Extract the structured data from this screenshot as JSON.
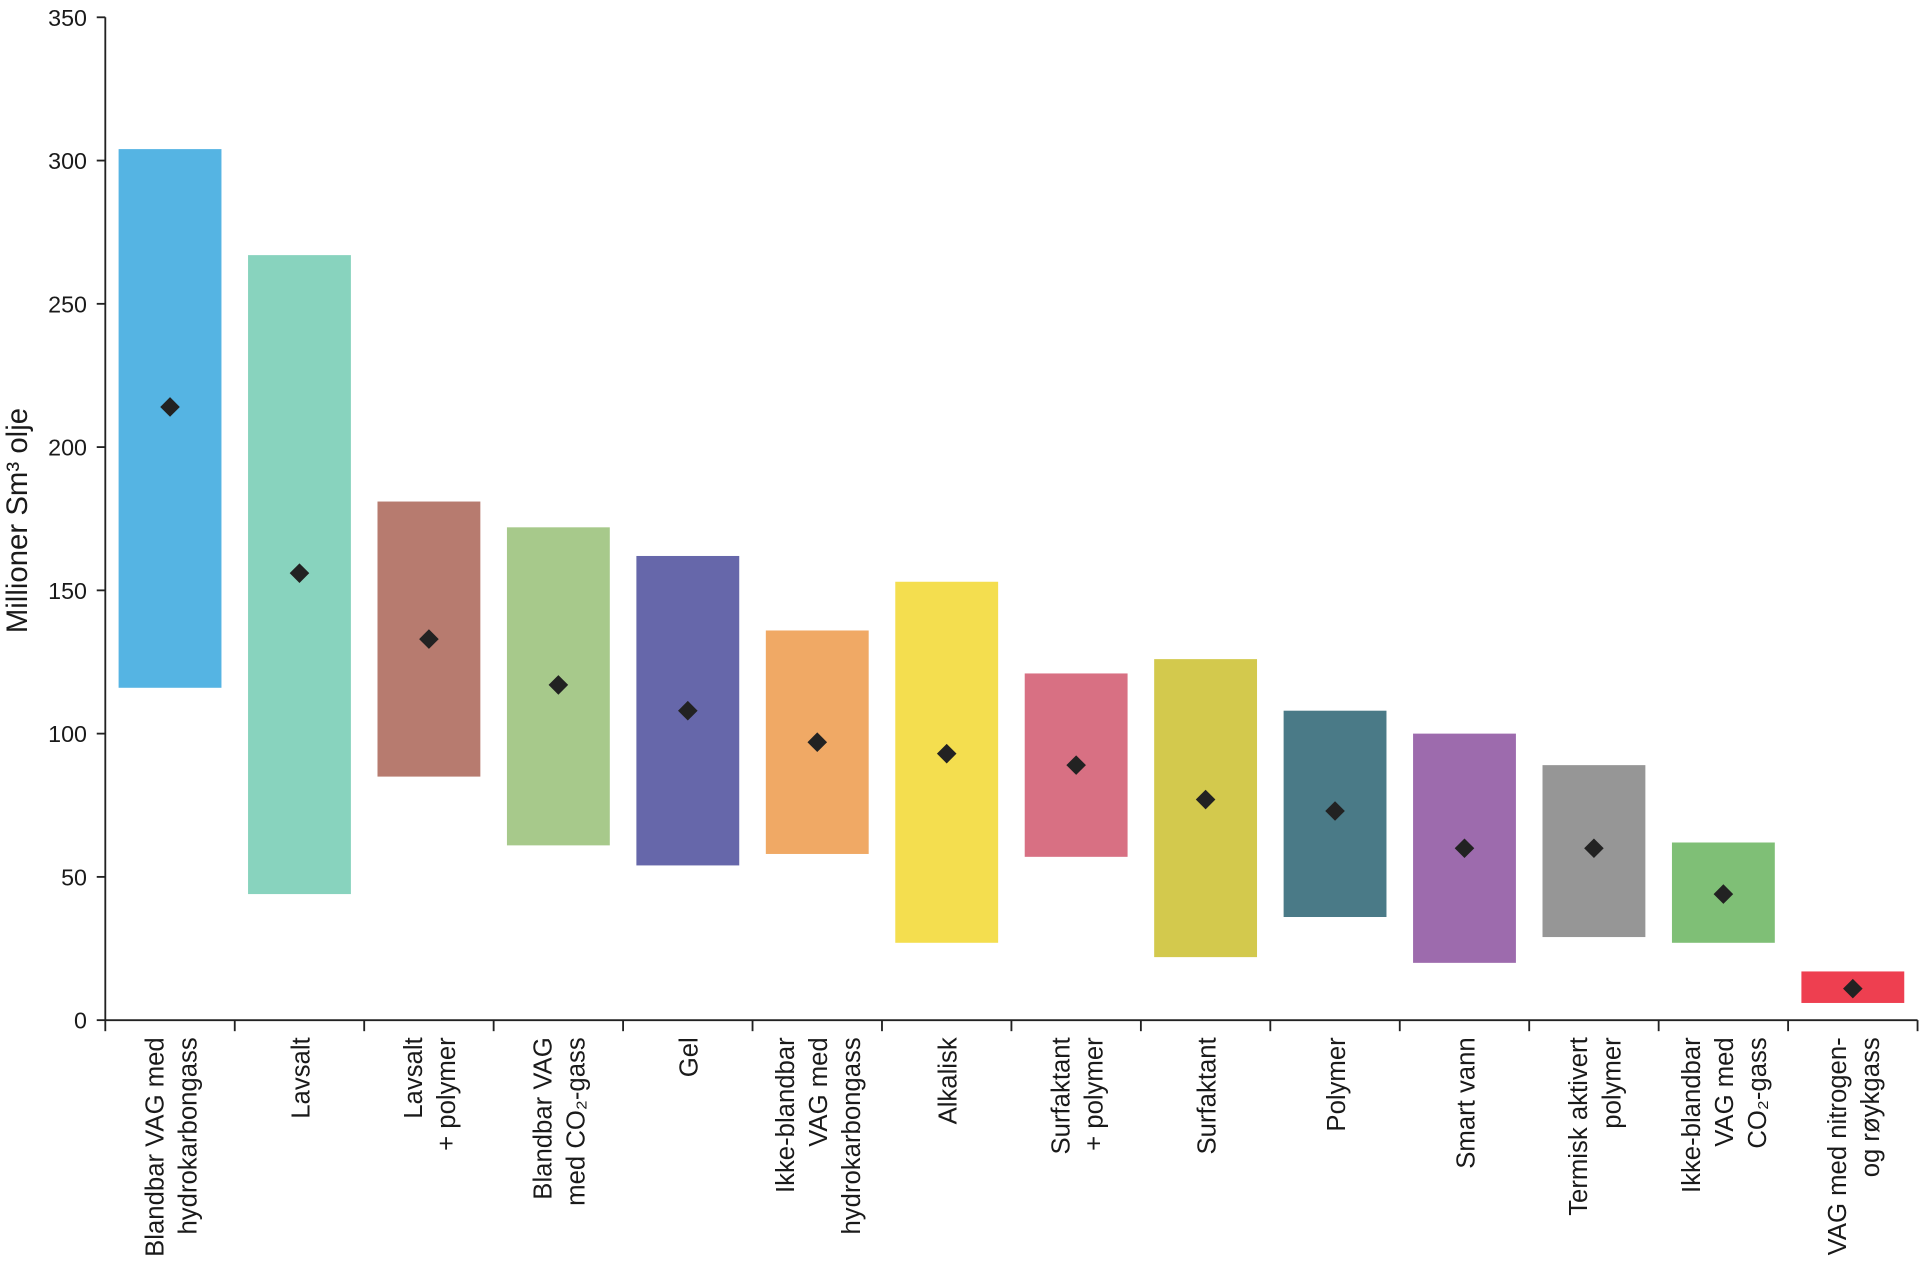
{
  "chart_data": {
    "type": "floating-bar-range",
    "title": "",
    "xlabel": "",
    "ylabel": "Millioner Sm³ olje",
    "ylim": [
      0,
      350
    ],
    "yticks": [
      0,
      50,
      100,
      150,
      200,
      250,
      300,
      350
    ],
    "grid": false,
    "legend": "none",
    "marker": "diamond",
    "categories": [
      {
        "label": [
          "Blandbar VAG med",
          "hydrokarbongass"
        ],
        "low": 116,
        "high": 304,
        "mid": 214,
        "color": "#55b4e3"
      },
      {
        "label": [
          "Lavsalt"
        ],
        "low": 44,
        "high": 267,
        "mid": 156,
        "color": "#88d3be"
      },
      {
        "label": [
          "Lavsalt",
          "+ polymer"
        ],
        "low": 85,
        "high": 181,
        "mid": 133,
        "color": "#b77b6f"
      },
      {
        "label": [
          "Blandbar VAG",
          "med CO₂-gass"
        ],
        "low": 61,
        "high": 172,
        "mid": 117,
        "color": "#a7c98b"
      },
      {
        "label": [
          "Gel"
        ],
        "low": 54,
        "high": 162,
        "mid": 108,
        "color": "#6667aa"
      },
      {
        "label": [
          "Ikke-blandbar",
          "VAG med",
          "hydrokarbongass"
        ],
        "low": 58,
        "high": 136,
        "mid": 97,
        "color": "#f0a965"
      },
      {
        "label": [
          "Alkalisk"
        ],
        "low": 27,
        "high": 153,
        "mid": 93,
        "color": "#f4de4f"
      },
      {
        "label": [
          "Surfaktant",
          "+ polymer"
        ],
        "low": 57,
        "high": 121,
        "mid": 89,
        "color": "#d87083"
      },
      {
        "label": [
          "Surfaktant"
        ],
        "low": 22,
        "high": 126,
        "mid": 77,
        "color": "#d3c94d"
      },
      {
        "label": [
          "Polymer"
        ],
        "low": 36,
        "high": 108,
        "mid": 73,
        "color": "#4a7a87"
      },
      {
        "label": [
          "Smart vann"
        ],
        "low": 20,
        "high": 100,
        "mid": 60,
        "color": "#9d6bad"
      },
      {
        "label": [
          "Termisk aktivert",
          "polymer"
        ],
        "low": 29,
        "high": 89,
        "mid": 60,
        "color": "#969696"
      },
      {
        "label": [
          "Ikke-blandbar",
          "VAG med",
          "CO₂-gass"
        ],
        "low": 27,
        "high": 62,
        "mid": 44,
        "color": "#7fbf76"
      },
      {
        "label": [
          "VAG med nitrogen-",
          "og røykgass"
        ],
        "low": 6,
        "high": 17,
        "mid": 11,
        "color": "#ee3f50"
      }
    ]
  }
}
